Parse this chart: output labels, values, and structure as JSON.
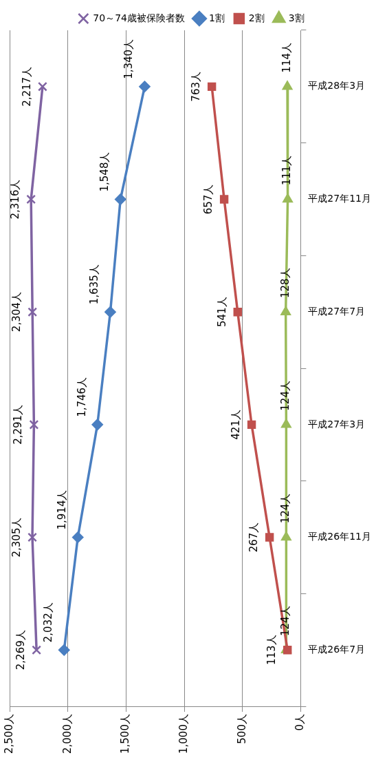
{
  "chart_data": {
    "type": "line",
    "orientation": "horizontal",
    "categories": [
      "平成28年3月",
      "平成27年11月",
      "平成27年7月",
      "平成27年3月",
      "平成26年11月",
      "平成26年7月"
    ],
    "series": [
      {
        "name": "70～74歳被保険者数",
        "color": "#7f63a2",
        "marker": "cross",
        "values": [
          2217,
          2316,
          2304,
          2291,
          2305,
          2269
        ],
        "value_labels": [
          "2,217人",
          "2,316人",
          "2,304人",
          "2,291人",
          "2,305人",
          "2,269人"
        ]
      },
      {
        "name": "1割",
        "color": "#4a7fc1",
        "marker": "diamond",
        "values": [
          1340,
          1548,
          1635,
          1746,
          1914,
          2032
        ],
        "value_labels": [
          "1,340人",
          "1,548人",
          "1,635人",
          "1,746人",
          "1,914人",
          "2,032人"
        ]
      },
      {
        "name": "2割",
        "color": "#c0504d",
        "marker": "square",
        "values": [
          763,
          657,
          541,
          421,
          267,
          113
        ],
        "value_labels": [
          "763人",
          "657人",
          "541人",
          "421人",
          "267人",
          "113人"
        ]
      },
      {
        "name": "3割",
        "color": "#9bbb59",
        "marker": "triangle",
        "values": [
          114,
          111,
          128,
          124,
          124,
          124
        ],
        "value_labels": [
          "114人",
          "111人",
          "128人",
          "124人",
          "124人",
          "124人"
        ]
      }
    ],
    "xlim": [
      2500,
      0
    ],
    "xticks": [
      {
        "value": 2500,
        "label": "2,500人"
      },
      {
        "value": 2000,
        "label": "2,000人"
      },
      {
        "value": 1500,
        "label": "1,500人"
      },
      {
        "value": 1000,
        "label": "1,000人"
      },
      {
        "value": 500,
        "label": "500人"
      },
      {
        "value": 0,
        "label": "0人"
      }
    ],
    "grid": "x",
    "legend": "top",
    "line_style": "solid"
  }
}
